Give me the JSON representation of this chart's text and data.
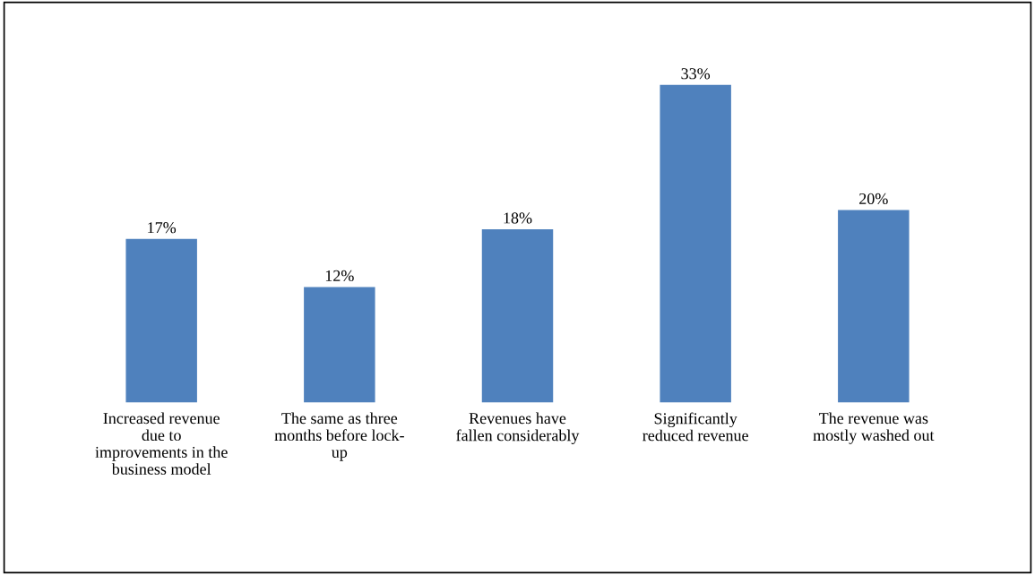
{
  "chart_data": {
    "type": "bar",
    "categories": [
      "Increased revenue\ndue to\nimprovements in the\nbusiness model",
      "The same as three\nmonths before lock-\nup",
      "Revenues have\nfallen considerably",
      "Significantly\nreduced revenue",
      "The revenue was\nmostly washed out"
    ],
    "values": [
      17,
      12,
      18,
      33,
      20
    ],
    "value_labels": [
      "17%",
      "12%",
      "18%",
      "33%",
      "20%"
    ],
    "color": "#4f81bd",
    "grid": false,
    "legend": false
  }
}
